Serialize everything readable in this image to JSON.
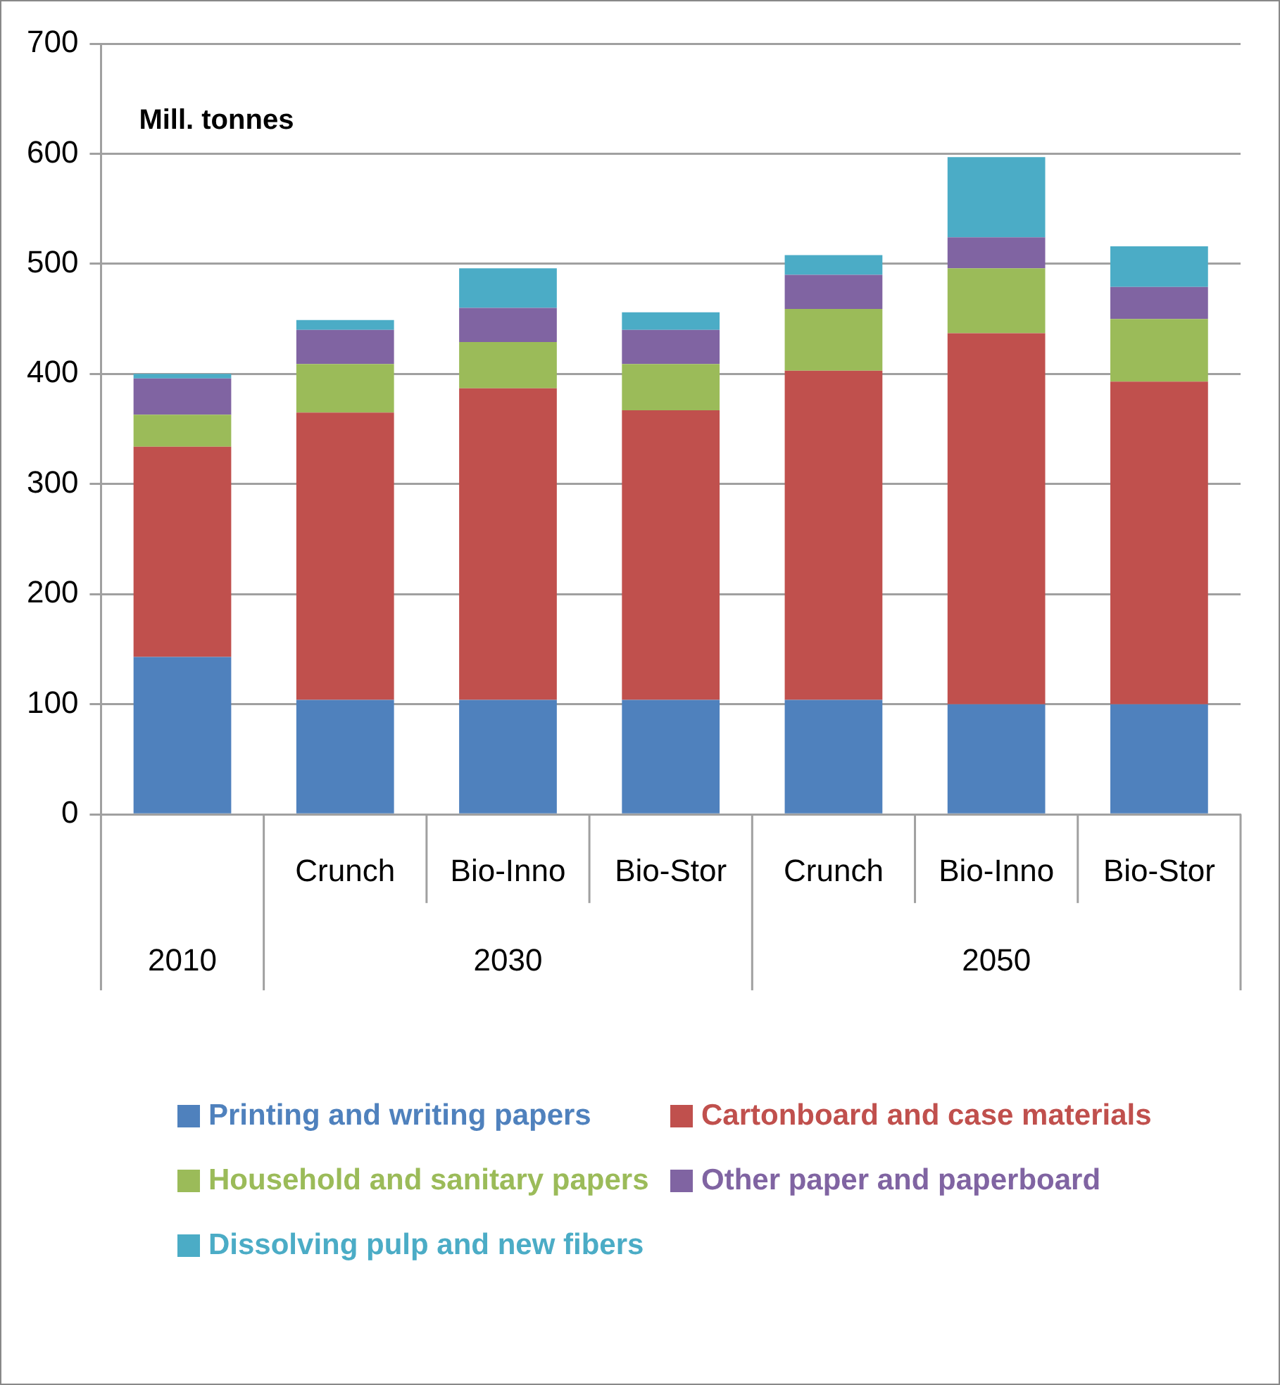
{
  "chart_data": {
    "type": "bar",
    "stacked": true,
    "ylabel": "Mill. tonnes",
    "categories": [
      null,
      "Crunch",
      "Bio-Inno",
      "Bio-Stor",
      "Crunch",
      "Bio-Inno",
      "Bio-Stor"
    ],
    "annotations": [
      "2010",
      "2030",
      "2050"
    ],
    "series": [
      {
        "name": "Printing and writing papers",
        "color": "#4f81bd",
        "values": [
          143,
          104,
          104,
          104,
          104,
          100,
          100
        ]
      },
      {
        "name": "Cartonboard and case materials",
        "color": "#c0504d",
        "values": [
          191,
          261,
          283,
          263,
          299,
          337,
          293
        ]
      },
      {
        "name": "Household and sanitary papers",
        "color": "#9bbb59",
        "values": [
          29,
          44,
          42,
          42,
          56,
          59,
          57
        ]
      },
      {
        "name": "Other paper and paperboard",
        "color": "#8064a2",
        "values": [
          33,
          31,
          31,
          31,
          31,
          28,
          29
        ]
      },
      {
        "name": "Dissolving pulp and new fibers",
        "color": "#4bacc6",
        "values": [
          4,
          9,
          36,
          16,
          18,
          73,
          37
        ]
      }
    ],
    "ylim": [
      0,
      700
    ],
    "yticks": [
      0,
      100,
      200,
      300,
      400,
      500,
      600,
      700
    ],
    "grid": "y",
    "legend": "bottom"
  }
}
